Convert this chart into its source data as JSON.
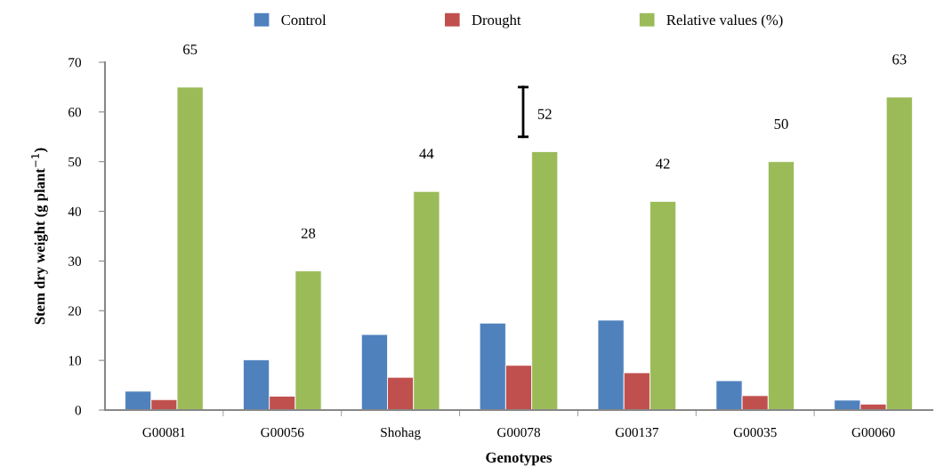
{
  "chart_data": {
    "type": "bar",
    "categories": [
      "G00081",
      "G00056",
      "Shohag",
      "G00078",
      "G00137",
      "G00035",
      "G00060"
    ],
    "series": [
      {
        "name": "Control",
        "color": "#4f81bd",
        "values": [
          3.8,
          10.1,
          15.2,
          17.5,
          18.1,
          5.9,
          2.0
        ]
      },
      {
        "name": "Drought",
        "color": "#c0504d",
        "values": [
          2.1,
          2.8,
          6.6,
          9.0,
          7.5,
          2.9,
          1.2
        ]
      },
      {
        "name": "Relative values (%)",
        "color": "#9bbb59",
        "values": [
          65,
          28,
          44,
          52,
          42,
          50,
          63
        ],
        "value_labels": [
          "65",
          "28",
          "44",
          "52",
          "42",
          "50",
          "63"
        ]
      }
    ],
    "xlabel": "Genotypes",
    "ylabel": "Stem dry weight (g plant$^{−1}$)",
    "ylim": [
      0,
      70
    ],
    "yticks": [
      0,
      10,
      20,
      30,
      40,
      50,
      60,
      70
    ],
    "grid": false,
    "legend": "top"
  }
}
